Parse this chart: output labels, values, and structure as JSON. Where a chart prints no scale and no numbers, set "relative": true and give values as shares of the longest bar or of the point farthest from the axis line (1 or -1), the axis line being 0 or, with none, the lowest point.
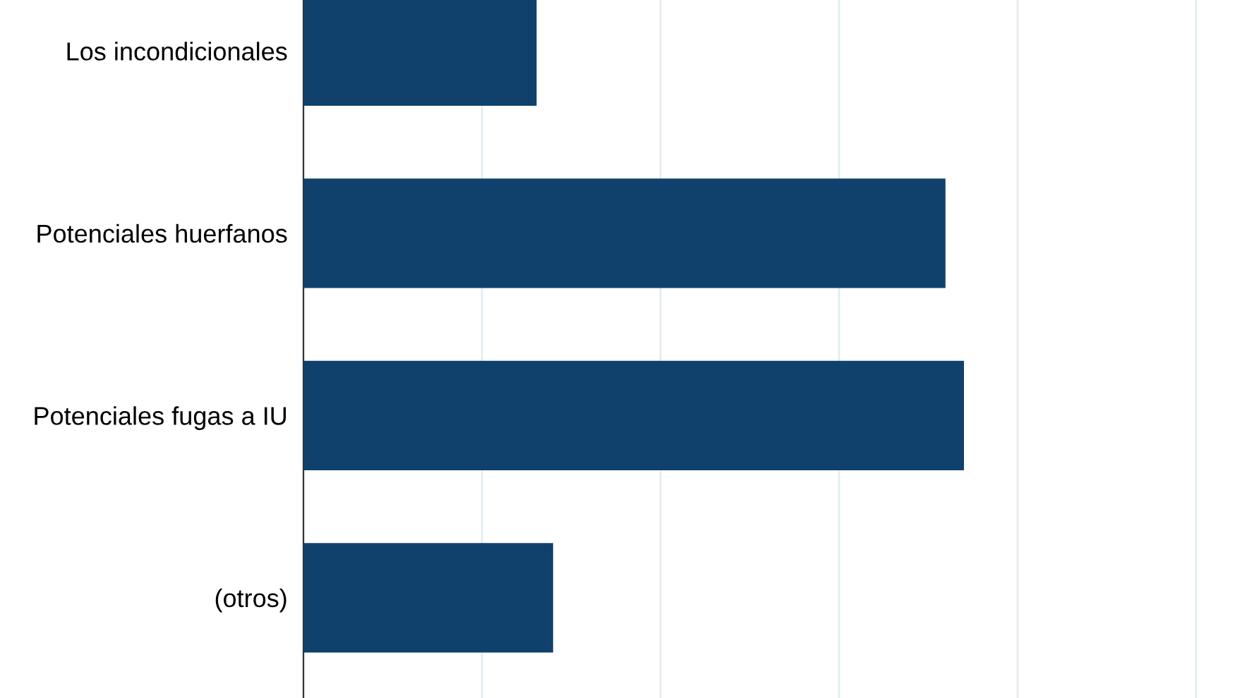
{
  "chart_data": {
    "type": "bar",
    "orientation": "horizontal",
    "relative": true,
    "categories": [
      "Los incondicionales",
      "Potenciales huerfanos",
      "Potenciales fugas a IU",
      "(otros)"
    ],
    "values": [
      0.353,
      0.972,
      1,
      0.378
    ],
    "color": "#0f416c",
    "grid": "x"
  }
}
